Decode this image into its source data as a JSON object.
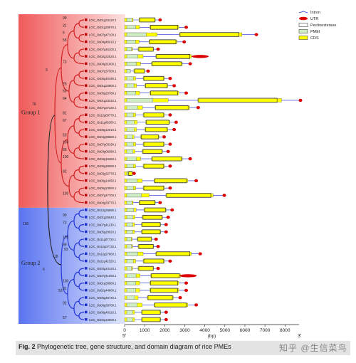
{
  "figure": {
    "caption_label": "Fig. 2",
    "caption_text": "Phylogenetic tree, gene structure, and domain diagram of rice PMEs",
    "watermark": "知乎 @生信菜鸟",
    "groups": [
      {
        "label": "Group 1",
        "color": "#f28a8a"
      },
      {
        "label": "Group 2",
        "color": "#8ea8f2"
      }
    ],
    "legend": [
      {
        "label": "Intron",
        "icon": "intron-line"
      },
      {
        "label": "UTR",
        "icon": "utr-ellipse",
        "color": "#dd0000"
      },
      {
        "label": "Pectinesterase",
        "icon": "pectinesterase-box",
        "color": "#ffffff"
      },
      {
        "label": "PMEI",
        "icon": "pmei-box",
        "color": "#cfeec4"
      },
      {
        "label": "CDS",
        "icon": "cds-box",
        "color": "#ffff00"
      }
    ],
    "axis": {
      "ticks": [
        "0",
        "1000",
        "2000",
        "3000",
        "4000",
        "5000",
        "6000",
        "7000",
        "8000"
      ],
      "left_end": "5'",
      "right_end": "3'",
      "unit": "(bp)"
    },
    "genes": [
      {
        "id": "LOC_Os01g23120.1",
        "group": 1,
        "len": 1700
      },
      {
        "id": "LOC_Os01g20970.1",
        "group": 1,
        "len": 3000
      },
      {
        "id": "LOC_Os07g47100.1",
        "group": 1,
        "len": 6500
      },
      {
        "id": "LOC_Os04g46010.1",
        "group": 1,
        "len": 2900
      },
      {
        "id": "LOC_Os07g45100.1",
        "group": 1,
        "len": 1600
      },
      {
        "id": "LOC_Os02g32520.1",
        "group": 1,
        "len": 3700
      },
      {
        "id": "LOC_Os04g31000.1",
        "group": 1,
        "len": 3200
      },
      {
        "id": "LOC_Os07g37300.1",
        "group": 1,
        "len": 1100
      },
      {
        "id": "LOC_Os06g40190.1",
        "group": 1,
        "len": 2200
      },
      {
        "id": "LOC_Os01g20800.1",
        "group": 1,
        "len": 2400
      },
      {
        "id": "LOC_Os05g20780.1",
        "group": 1,
        "len": 3000
      },
      {
        "id": "LOC_Os01g23310.1",
        "group": 1,
        "len": 8700
      },
      {
        "id": "LOC_Os07g37220.1",
        "group": 1,
        "len": 3600
      },
      {
        "id": "LOC_Os12g09770.1",
        "group": 1,
        "len": 2200
      },
      {
        "id": "LOC_Os11g08200.1",
        "group": 1,
        "len": 2500
      },
      {
        "id": "LOC_Os08g12610.1",
        "group": 1,
        "len": 2400
      },
      {
        "id": "LOC_Os04g38660.1",
        "group": 1,
        "len": 1900
      },
      {
        "id": "LOC_Os07g03190.1",
        "group": 1,
        "len": 2200
      },
      {
        "id": "LOC_Os03g06380.1",
        "group": 1,
        "len": 2100
      },
      {
        "id": "LOC_Os03g19450.1",
        "group": 1,
        "len": 3200
      },
      {
        "id": "LOC_Os06g28090.1",
        "group": 1,
        "len": 2200
      },
      {
        "id": "LOC_Os03g32770.1",
        "group": 1,
        "len": 400
      },
      {
        "id": "LOC_Os06g14450.1",
        "group": 1,
        "len": 3500
      },
      {
        "id": "LOC_Os05g23550.1",
        "group": 1,
        "len": 2200
      },
      {
        "id": "LOC_Os07g47700.1",
        "group": 1,
        "len": 4900
      },
      {
        "id": "LOC_Os04g33770.1",
        "group": 1,
        "len": 1700
      },
      {
        "id": "LOC_Os12g26690.1",
        "group": 2,
        "len": 2300
      },
      {
        "id": "LOC_Os01g26940.1",
        "group": 2,
        "len": 2100
      },
      {
        "id": "LOC_Os07g41130.1",
        "group": 2,
        "len": 2000
      },
      {
        "id": "LOC_Os05g29920.1",
        "group": 2,
        "len": 2000
      },
      {
        "id": "LOC_Os11g07720.1",
        "group": 2,
        "len": 1500
      },
      {
        "id": "LOC_Os12g07720.1",
        "group": 2,
        "len": 1600
      },
      {
        "id": "LOC_Os12g27660.1",
        "group": 2,
        "len": 3700
      },
      {
        "id": "LOC_Os11g42320.1",
        "group": 2,
        "len": 2200
      },
      {
        "id": "LOC_Os03g44120.1",
        "group": 2,
        "len": 1600
      },
      {
        "id": "LOC_Os07g41050.1",
        "group": 2,
        "len": 3100
      },
      {
        "id": "LOC_Os01g38980.1",
        "group": 2,
        "len": 3000
      },
      {
        "id": "LOC_Os02g44600.1",
        "group": 2,
        "len": 3000
      },
      {
        "id": "LOC_Os06g46740.1",
        "group": 2,
        "len": 2700
      },
      {
        "id": "LOC_Os08g39700.1",
        "group": 2,
        "len": 3500
      },
      {
        "id": "LOC_Os08g40310.1",
        "group": 2,
        "len": 2000
      },
      {
        "id": "LOC_Os02g10600.1",
        "group": 2,
        "len": 2000
      }
    ],
    "bootstrap_leaf": [
      "99",
      "31",
      "6",
      "55",
      "",
      "",
      "73",
      "",
      "",
      "25",
      "53",
      "64",
      "",
      "81",
      "67",
      "",
      "50",
      "100",
      "89",
      "100",
      "",
      "82",
      "",
      "",
      "100",
      "",
      "",
      "90",
      "73",
      "",
      "100",
      "99",
      "",
      "",
      "",
      "",
      "100",
      "81",
      "",
      "92",
      "",
      "57"
    ],
    "bootstrap_internal": [
      "9",
      "79",
      "100",
      "93",
      "18",
      "6",
      "53"
    ]
  }
}
